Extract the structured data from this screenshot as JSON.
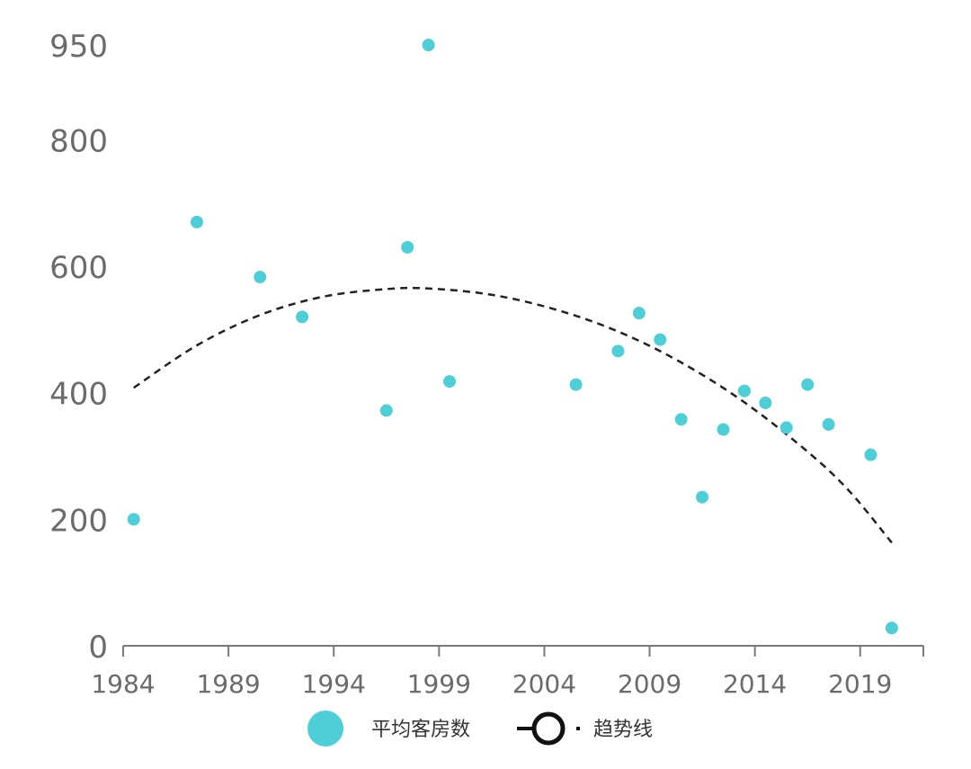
{
  "chart_data": {
    "type": "scatter",
    "title": "",
    "xlabel": "",
    "ylabel": "",
    "xlim": [
      1984,
      2022
    ],
    "ylim": [
      0,
      950
    ],
    "x_ticks": [
      1984,
      1989,
      1994,
      1999,
      2004,
      2009,
      2014,
      2019
    ],
    "y_ticks": [
      0,
      200,
      400,
      600,
      800,
      950
    ],
    "grid": false,
    "legend_position": "bottom",
    "series": [
      {
        "name": "平均客房数",
        "kind": "scatter",
        "color": "#4ecfd8",
        "points": [
          {
            "x": 1984.5,
            "y": 200
          },
          {
            "x": 1987.5,
            "y": 670
          },
          {
            "x": 1990.5,
            "y": 583
          },
          {
            "x": 1992.5,
            "y": 520
          },
          {
            "x": 1996.5,
            "y": 372
          },
          {
            "x": 1997.5,
            "y": 630
          },
          {
            "x": 1998.5,
            "y": 950
          },
          {
            "x": 1999.5,
            "y": 418
          },
          {
            "x": 2005.5,
            "y": 413
          },
          {
            "x": 2007.5,
            "y": 466
          },
          {
            "x": 2008.5,
            "y": 526
          },
          {
            "x": 2009.5,
            "y": 484
          },
          {
            "x": 2010.5,
            "y": 358
          },
          {
            "x": 2011.5,
            "y": 235
          },
          {
            "x": 2012.5,
            "y": 342
          },
          {
            "x": 2013.5,
            "y": 403
          },
          {
            "x": 2014.5,
            "y": 384
          },
          {
            "x": 2015.5,
            "y": 345
          },
          {
            "x": 2016.5,
            "y": 413
          },
          {
            "x": 2017.5,
            "y": 350
          },
          {
            "x": 2019.5,
            "y": 302
          },
          {
            "x": 2020.5,
            "y": 28
          }
        ]
      },
      {
        "name": "趋势线",
        "kind": "polynomial-trend",
        "color": "#222222",
        "points": [
          {
            "x": 1984.5,
            "y": 408
          },
          {
            "x": 1987.5,
            "y": 475
          },
          {
            "x": 1990.5,
            "y": 523
          },
          {
            "x": 1993.5,
            "y": 552
          },
          {
            "x": 1996.5,
            "y": 564
          },
          {
            "x": 1998.5,
            "y": 565
          },
          {
            "x": 2001.5,
            "y": 555
          },
          {
            "x": 2004.5,
            "y": 532
          },
          {
            "x": 2007.5,
            "y": 497
          },
          {
            "x": 2010.5,
            "y": 448
          },
          {
            "x": 2013.5,
            "y": 385
          },
          {
            "x": 2016.5,
            "y": 307
          },
          {
            "x": 2018.5,
            "y": 244
          },
          {
            "x": 2020.5,
            "y": 163
          }
        ]
      }
    ]
  }
}
